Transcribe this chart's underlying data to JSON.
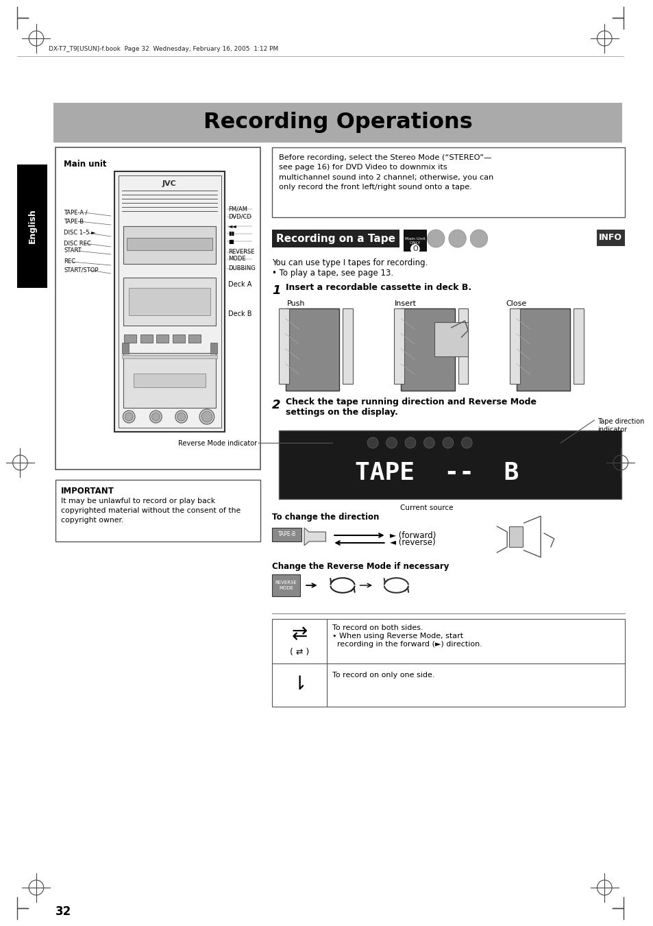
{
  "page_bg": "#ffffff",
  "header_text": "DX-T7_T9[USUN]-f.book  Page 32  Wednesday, February 16, 2005  1:12 PM",
  "title_text": "Recording Operations",
  "title_bg": "#aaaaaa",
  "side_tab_bg": "#000000",
  "side_tab_text": "English",
  "main_unit_label": "Main unit",
  "important_title": "IMPORTANT",
  "important_body": "It may be unlawful to record or play back\ncopyrighted material without the consent of the\ncopyright owner.",
  "note_box_text": "Before recording, select the Stereo Mode (“STEREO”—\nsee page 16) for DVD Video to downmix its\nmultichannel sound into 2 channel; otherwise, you can\nonly record the front left/right sound onto a tape.",
  "section_title": "Recording on a Tape",
  "intro_text1": "You can use type I tapes for recording.",
  "intro_text2": "• To play a tape, see page 13.",
  "step1_num": "1",
  "step1_text": "Insert a recordable cassette in deck B.",
  "push_label": "Push",
  "insert_label": "Insert",
  "close_label": "Close",
  "step2_num": "2",
  "step2_text": "Check the tape running direction and Reverse Mode\nsettings on the display.",
  "tape_dir_label": "Tape direction\nindicator",
  "rev_mode_label": "Reverse Mode indicator",
  "current_src_label": "Current source",
  "change_dir_label": "To change the direction",
  "tape_b_label": "TAPE-B",
  "forward_label": "► (forward)",
  "reverse_label": "◄ (reverse)",
  "change_rev_label": "Change the Reverse Mode if necessary",
  "rev_mode_button": "REVERSE\nMODE",
  "table_row1_sym": "⇄",
  "table_row1_paren": "( ⇄ )",
  "table_row1_text1": "To record on both sides.",
  "table_row1_text2": "• When using Reverse Mode, start",
  "table_row1_text3": "  recording in the forward (►) direction.",
  "table_row2_sym": "⇂",
  "table_row2_text": "To record on only one side.",
  "page_number": "32",
  "info_label": "INFO",
  "main_unit_only": "Main Unit\nONLY"
}
